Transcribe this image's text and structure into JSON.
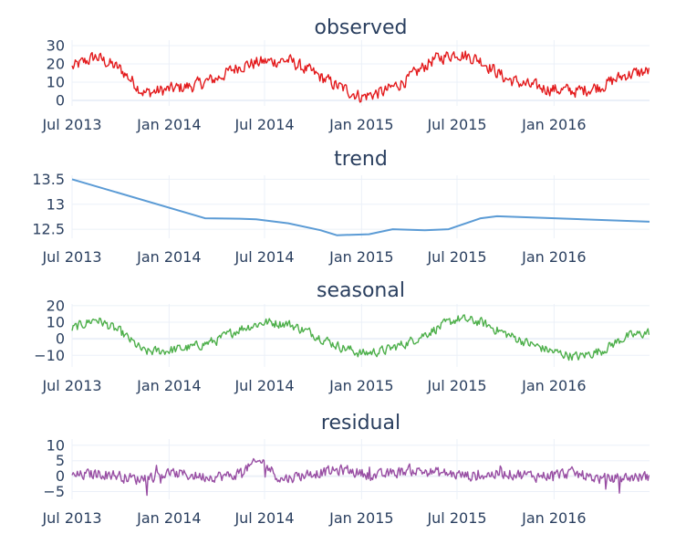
{
  "chart_data": {
    "type": "line",
    "x_tick_labels": [
      "Jul 2013",
      "Jan 2014",
      "Jul 2014",
      "Jan 2015",
      "Jul 2015",
      "Jan 2016"
    ],
    "x_tick_dates": [
      "2013-07-01",
      "2014-01-01",
      "2014-07-01",
      "2015-01-01",
      "2015-07-01",
      "2016-01-01"
    ],
    "x_range": [
      "2013-07-01",
      "2016-06-30"
    ],
    "grid": true,
    "panels": [
      {
        "key": "observed",
        "title": "observed",
        "color": "#e31a1c",
        "ylim": [
          -3,
          33
        ],
        "y_ticks": [
          0,
          10,
          20,
          30
        ],
        "y_tick_labels": [
          "0",
          "10",
          "20",
          "30"
        ],
        "series": [
          {
            "x": [
              "2013-07-01",
              "2013-08-15",
              "2013-10-01",
              "2013-11-15",
              "2014-01-01",
              "2014-02-15",
              "2014-04-01",
              "2014-05-15",
              "2014-06-25",
              "2014-08-15",
              "2014-10-01",
              "2014-11-15",
              "2015-01-01",
              "2015-02-15",
              "2015-04-01",
              "2015-05-15",
              "2015-07-01",
              "2015-08-15",
              "2015-10-01",
              "2015-11-15",
              "2016-01-01",
              "2016-02-15",
              "2016-04-01",
              "2016-05-15",
              "2016-06-30"
            ],
            "y": [
              18,
              24,
              17,
              4,
              6,
              8,
              12,
              19,
              21,
              22,
              15,
              8,
              2,
              5,
              12,
              22,
              26,
              22,
              12,
              8,
              6,
              5,
              8,
              14,
              16
            ]
          }
        ]
      },
      {
        "key": "trend",
        "title": "trend",
        "color": "#5b9bd5",
        "ylim": [
          12.32,
          13.58
        ],
        "y_ticks": [
          12.5,
          13,
          13.5
        ],
        "y_tick_labels": [
          "12.5",
          "13",
          "13.5"
        ],
        "series": [
          {
            "x": [
              "2013-07-01",
              "2014-03-10",
              "2014-05-15",
              "2014-06-15",
              "2014-08-15",
              "2014-10-15",
              "2014-11-15",
              "2015-01-15",
              "2015-03-01",
              "2015-05-01",
              "2015-06-15",
              "2015-08-15",
              "2015-09-15",
              "2016-06-30"
            ],
            "y": [
              13.5,
              12.72,
              12.71,
              12.7,
              12.62,
              12.48,
              12.38,
              12.4,
              12.5,
              12.48,
              12.5,
              12.72,
              12.76,
              12.65
            ]
          }
        ]
      },
      {
        "key": "seasonal",
        "title": "seasonal",
        "color": "#4daf4a",
        "ylim": [
          -17,
          21
        ],
        "y_ticks": [
          -10,
          0,
          10,
          20
        ],
        "y_tick_labels": [
          "−10",
          "0",
          "10",
          "20"
        ],
        "series": [
          {
            "x": [
              "2013-07-01",
              "2013-08-15",
              "2013-10-01",
              "2013-11-15",
              "2014-01-01",
              "2014-02-15",
              "2014-04-01",
              "2014-05-15",
              "2014-07-01",
              "2014-08-15",
              "2014-10-01",
              "2014-11-15",
              "2015-01-01",
              "2015-02-15",
              "2015-04-01",
              "2015-05-15",
              "2015-07-01",
              "2015-08-15",
              "2015-10-01",
              "2015-11-15",
              "2016-01-01",
              "2016-02-15",
              "2016-04-01",
              "2016-05-15",
              "2016-06-30"
            ],
            "y": [
              6,
              12,
              4,
              -8,
              -7,
              -5,
              -1,
              6,
              10,
              9,
              3,
              -4,
              -9,
              -7,
              -2,
              5,
              12,
              10,
              3,
              -3,
              -8,
              -11,
              -7,
              1,
              4
            ]
          }
        ]
      },
      {
        "key": "residual",
        "title": "residual",
        "color": "#984ea3",
        "ylim": [
          -7.5,
          12
        ],
        "y_ticks": [
          -5,
          0,
          5,
          10
        ],
        "y_tick_labels": [
          "−5",
          "0",
          "5",
          "10"
        ],
        "series": [
          {
            "x": [
              "2013-07-01",
              "2013-09-01",
              "2013-11-01",
              "2014-01-01",
              "2014-03-01",
              "2014-05-01",
              "2014-06-25",
              "2014-08-01",
              "2014-10-01",
              "2014-12-01",
              "2015-02-01",
              "2015-04-01",
              "2015-06-01",
              "2015-08-01",
              "2015-10-01",
              "2015-12-01",
              "2016-02-01",
              "2016-04-01",
              "2016-06-30"
            ],
            "y": [
              0,
              1,
              -1,
              1,
              0,
              0,
              5,
              -1,
              1,
              2,
              0,
              2,
              1,
              0,
              1,
              0,
              1,
              -1,
              0
            ]
          }
        ]
      }
    ]
  }
}
